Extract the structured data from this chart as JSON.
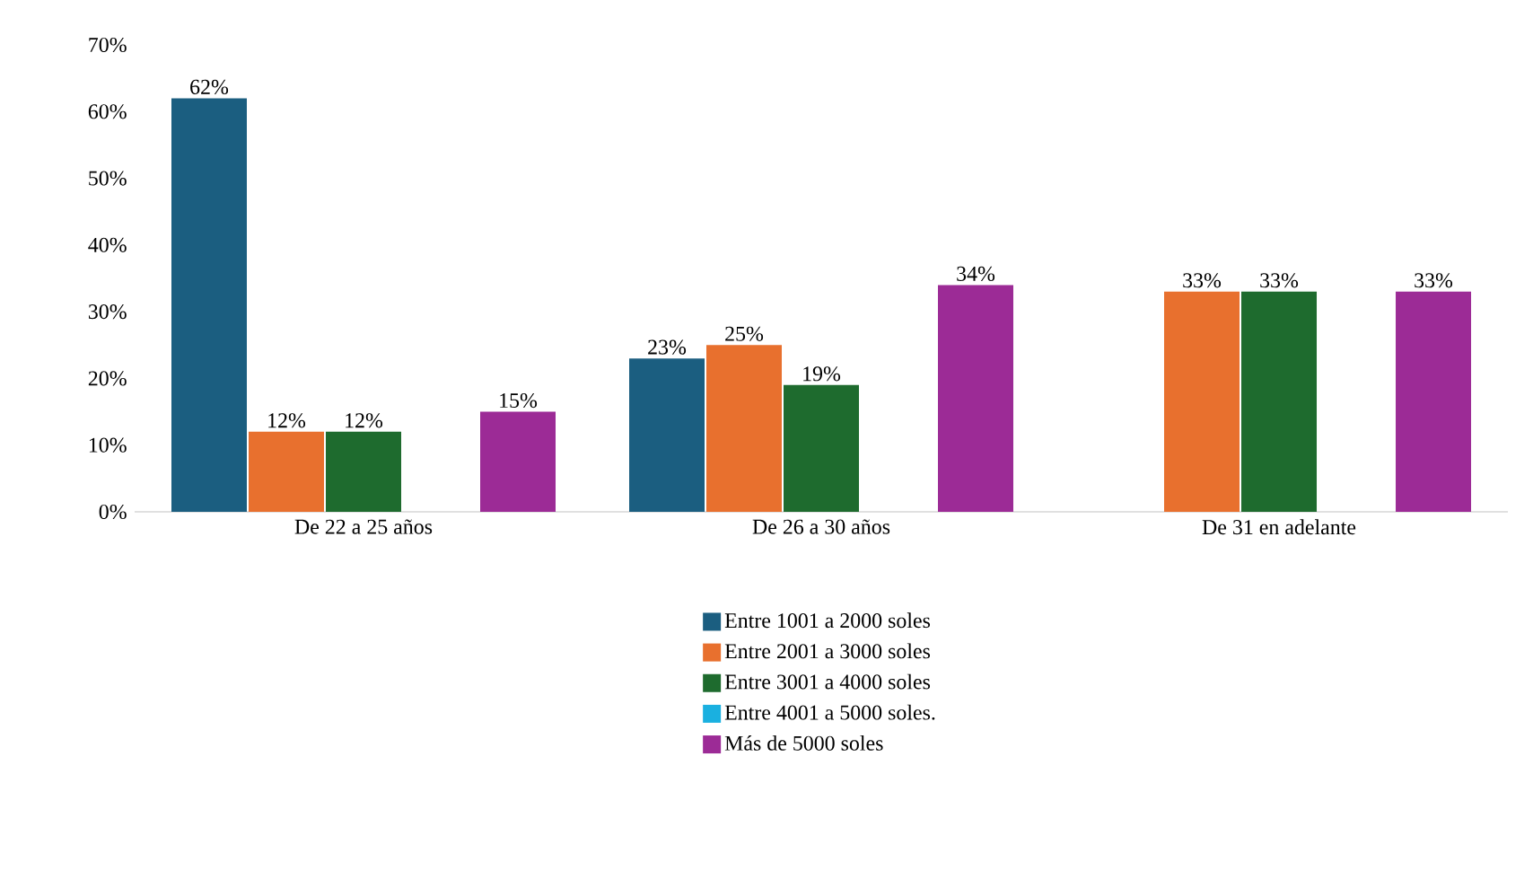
{
  "chart_data": {
    "type": "bar",
    "categories": [
      "De 22 a 25 años",
      "De 26 a 30 años",
      "De 31 en adelante"
    ],
    "series": [
      {
        "name": "Entre 1001 a 2000 soles",
        "color": "#1b5e80",
        "values": [
          62,
          23,
          null
        ],
        "value_labels": [
          "62%",
          "23%",
          null
        ]
      },
      {
        "name": "Entre 2001 a 3000 soles",
        "color": "#e8702e",
        "values": [
          12,
          25,
          33
        ],
        "value_labels": [
          "12%",
          "25%",
          "33%"
        ]
      },
      {
        "name": "Entre 3001 a 4000 soles",
        "color": "#1e6b2e",
        "values": [
          12,
          19,
          33
        ],
        "value_labels": [
          "12%",
          "19%",
          "33%"
        ]
      },
      {
        "name": "Entre 4001 a 5000 soles.",
        "color": "#1ab0e0",
        "values": [
          null,
          null,
          null
        ]
      },
      {
        "name": "Más de 5000 soles",
        "color": "#9c2b96",
        "values": [
          15,
          34,
          33
        ],
        "value_labels": [
          "15%",
          "34%",
          "33%"
        ]
      }
    ],
    "ylim": [
      0,
      70
    ],
    "yticks": [
      {
        "value": 0,
        "label": "0%"
      },
      {
        "value": 10,
        "label": "10%"
      },
      {
        "value": 20,
        "label": "20%"
      },
      {
        "value": 30,
        "label": "30%"
      },
      {
        "value": 40,
        "label": "40%"
      },
      {
        "value": 50,
        "label": "50%"
      },
      {
        "value": 60,
        "label": "60%"
      },
      {
        "value": 70,
        "label": "70%"
      }
    ],
    "legend": "bottom"
  }
}
